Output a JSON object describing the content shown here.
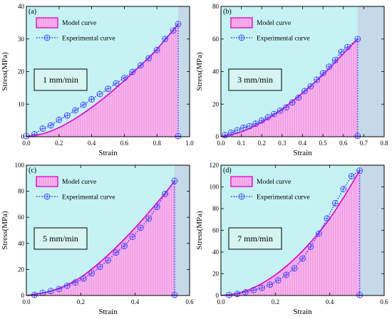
{
  "colors": {
    "plot_bg": "#c5f3f3",
    "failure_zone": "#c6d9e8",
    "model_line": "#e000c8",
    "model_fill": "#f8b5ee",
    "hatch": "#e88ad8",
    "experimental": "#3a3aff",
    "box_fill": "#d6f4f0"
  },
  "chart_data": [
    {
      "type": "line",
      "panel_label": "(a)",
      "rate_label": "1 mm/min",
      "xlabel": "Strain",
      "ylabel": "Stress(MPa)",
      "xlim": [
        0.0,
        1.0
      ],
      "ylim": [
        0,
        40
      ],
      "xticks": [
        0.0,
        0.2,
        0.4,
        0.6,
        0.8,
        1.0
      ],
      "xtick_labels": [
        "0.0",
        "0.2",
        "0.4",
        "0.6",
        "0.8",
        "1.0"
      ],
      "yticks": [
        0,
        10,
        20,
        30,
        40
      ],
      "ytick_labels": [
        "0",
        "10",
        "20",
        "30",
        "40"
      ],
      "failure_strain": 0.93,
      "legend": [
        "Model curve",
        "Experimental curve"
      ],
      "series": [
        {
          "name": "Model curve",
          "x": [
            0,
            0.1,
            0.2,
            0.3,
            0.4,
            0.5,
            0.6,
            0.7,
            0.8,
            0.93
          ],
          "y": [
            0,
            0.9,
            2.8,
            5.6,
            9.0,
            12.9,
            17.2,
            21.9,
            26.9,
            34.6
          ]
        },
        {
          "name": "Experimental curve",
          "x": [
            0.0,
            0.05,
            0.1,
            0.15,
            0.2,
            0.25,
            0.3,
            0.35,
            0.4,
            0.45,
            0.5,
            0.55,
            0.6,
            0.65,
            0.7,
            0.75,
            0.8,
            0.85,
            0.9,
            0.93,
            0.93
          ],
          "y": [
            0.2,
            0.8,
            2.5,
            3.5,
            5.2,
            6.5,
            8.1,
            9.8,
            11.5,
            13.1,
            14.7,
            16.4,
            18.0,
            19.9,
            21.9,
            24.1,
            26.6,
            30.0,
            32.6,
            34.6,
            0.2
          ]
        }
      ]
    },
    {
      "type": "line",
      "panel_label": "(b)",
      "rate_label": "3 mm/min",
      "xlabel": "Strain",
      "ylabel": "Stress(MPa)",
      "xlim": [
        0.0,
        0.8
      ],
      "ylim": [
        0,
        80
      ],
      "xticks": [
        0.0,
        0.1,
        0.2,
        0.3,
        0.4,
        0.5,
        0.6,
        0.7,
        0.8
      ],
      "xtick_labels": [
        "0.0",
        "0.1",
        "0.2",
        "0.3",
        "0.4",
        "0.5",
        "0.6",
        "0.7",
        "0.8"
      ],
      "yticks": [
        0,
        20,
        40,
        60,
        80
      ],
      "ytick_labels": [
        "0",
        "20",
        "40",
        "60",
        "80"
      ],
      "failure_strain": 0.67,
      "legend": [
        "Model curve",
        "Experimental curve"
      ],
      "series": [
        {
          "name": "Model curve",
          "x": [
            0,
            0.1,
            0.2,
            0.3,
            0.4,
            0.5,
            0.6,
            0.67
          ],
          "y": [
            0,
            3,
            9,
            17,
            27,
            38,
            51,
            60
          ]
        },
        {
          "name": "Experimental curve",
          "x": [
            0.02,
            0.05,
            0.08,
            0.11,
            0.14,
            0.17,
            0.2,
            0.23,
            0.26,
            0.29,
            0.32,
            0.35,
            0.38,
            0.41,
            0.44,
            0.47,
            0.5,
            0.53,
            0.56,
            0.59,
            0.62,
            0.67,
            0.67
          ],
          "y": [
            1,
            2.5,
            4,
            5.5,
            6.5,
            8,
            10,
            12,
            14,
            16,
            18,
            21,
            24,
            28,
            31,
            35,
            39,
            43,
            47,
            52,
            55,
            60,
            0.5
          ]
        }
      ]
    },
    {
      "type": "line",
      "panel_label": "(c)",
      "rate_label": "5 mm/min",
      "xlabel": "Strain",
      "ylabel": "Stress(MPa)",
      "xlim": [
        0.0,
        0.6
      ],
      "ylim": [
        0,
        100
      ],
      "xticks": [
        0.0,
        0.2,
        0.4,
        0.6
      ],
      "xtick_labels": [
        "0.0",
        "0.2",
        "0.4",
        "0.6"
      ],
      "yticks": [
        0,
        20,
        40,
        60,
        80,
        100
      ],
      "ytick_labels": [
        "0",
        "20",
        "40",
        "60",
        "80",
        "100"
      ],
      "failure_strain": 0.545,
      "legend": [
        "Model curve",
        "Experimental curve"
      ],
      "series": [
        {
          "name": "Model curve",
          "x": [
            0.0,
            0.1,
            0.2,
            0.3,
            0.4,
            0.5,
            0.545
          ],
          "y": [
            0,
            4,
            14,
            31,
            52,
            76,
            88
          ]
        },
        {
          "name": "Experimental curve",
          "x": [
            0.03,
            0.06,
            0.09,
            0.12,
            0.15,
            0.18,
            0.21,
            0.24,
            0.27,
            0.3,
            0.33,
            0.36,
            0.39,
            0.42,
            0.45,
            0.48,
            0.51,
            0.545,
            0.545
          ],
          "y": [
            0.5,
            2,
            3.5,
            5,
            7.5,
            10,
            13,
            17,
            22,
            27,
            33,
            38,
            45,
            52,
            59,
            68,
            78,
            88,
            0.5
          ]
        }
      ]
    },
    {
      "type": "line",
      "panel_label": "(d)",
      "rate_label": "7 mm/min",
      "xlabel": "Strain",
      "ylabel": "Stress(MPa)",
      "xlim": [
        0.0,
        0.6
      ],
      "ylim": [
        0,
        120
      ],
      "xticks": [
        0.0,
        0.2,
        0.4,
        0.6
      ],
      "xtick_labels": [
        "0.0",
        "0.2",
        "0.4",
        "0.6"
      ],
      "yticks": [
        0,
        20,
        40,
        60,
        80,
        100,
        120
      ],
      "ytick_labels": [
        "0",
        "20",
        "40",
        "60",
        "80",
        "100",
        "120"
      ],
      "failure_strain": 0.51,
      "legend": [
        "Model curve",
        "Experimental curve"
      ],
      "series": [
        {
          "name": "Model curve",
          "x": [
            0,
            0.05,
            0.1,
            0.15,
            0.2,
            0.25,
            0.3,
            0.35,
            0.4,
            0.45,
            0.51
          ],
          "y": [
            0,
            1.5,
            5,
            11,
            19,
            29,
            41,
            55,
            71,
            90,
            115
          ]
        },
        {
          "name": "Experimental curve",
          "x": [
            0.03,
            0.06,
            0.09,
            0.12,
            0.15,
            0.18,
            0.21,
            0.24,
            0.27,
            0.3,
            0.33,
            0.36,
            0.39,
            0.42,
            0.45,
            0.48,
            0.51,
            0.51
          ],
          "y": [
            0.5,
            1.5,
            3,
            5,
            7,
            10,
            14,
            19,
            25,
            34,
            45,
            57,
            71,
            85,
            98,
            110,
            115,
            0.5
          ]
        }
      ]
    }
  ]
}
